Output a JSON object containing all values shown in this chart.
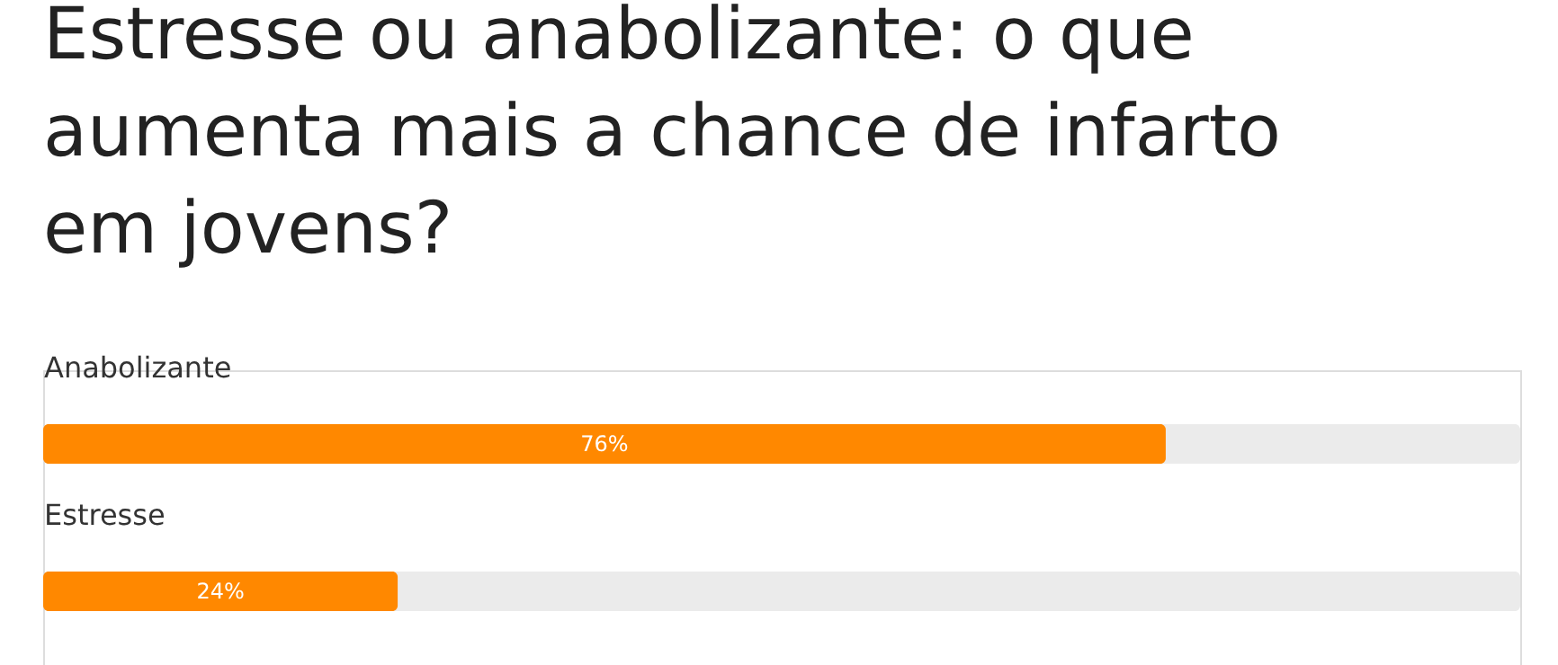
{
  "chart_data": {
    "type": "bar",
    "orientation": "horizontal",
    "title": "Estresse ou anabolizante: o que aumenta mais a chance de infarto em jovens?",
    "categories": [
      "Anabolizante",
      "Estresse"
    ],
    "values": [
      76,
      24
    ],
    "color": "#ff8800",
    "xlim": [
      0,
      100
    ],
    "data_labels": true,
    "value_labels": [
      "76%",
      "24%"
    ]
  }
}
